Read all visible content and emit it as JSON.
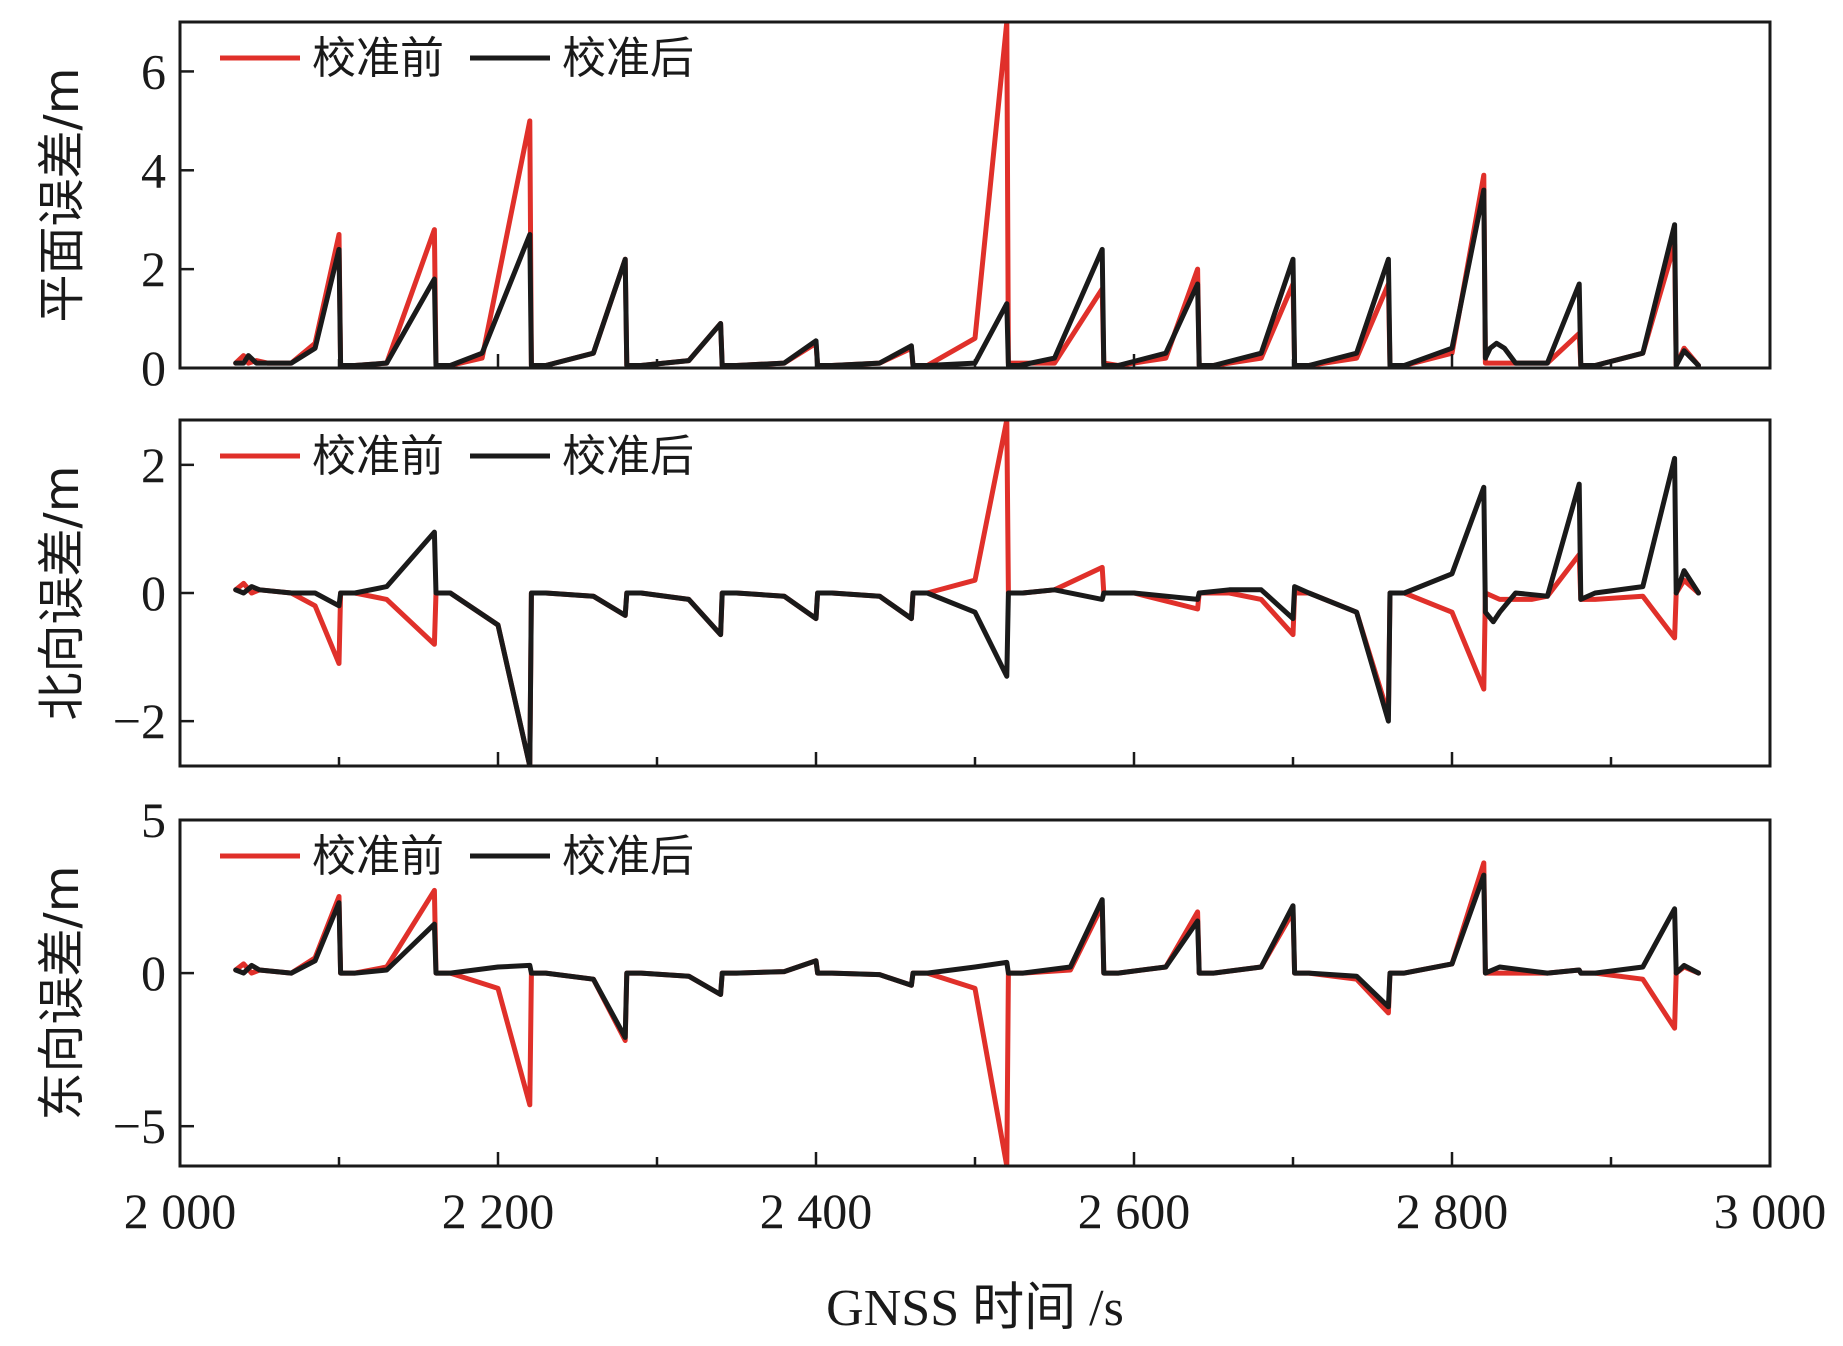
{
  "chart_data": [
    {
      "type": "line",
      "ylabel": "平面误差/m",
      "xlabel": "",
      "xlim": [
        2000,
        3000
      ],
      "ylim": [
        0,
        7
      ],
      "yticks": [
        0,
        2,
        4,
        6
      ],
      "ytick_labels": [
        "0",
        "2",
        "4",
        "6"
      ],
      "legend": "top-left",
      "grid": false,
      "series": [
        {
          "name": "校准前",
          "color": "#e0302a",
          "x": [
            2035,
            2040,
            2043,
            2048,
            2055,
            2070,
            2085,
            2100,
            2101,
            2110,
            2130,
            2160,
            2161,
            2170,
            2190,
            2220,
            2221,
            2230,
            2260,
            2280,
            2281,
            2290,
            2320,
            2340,
            2341,
            2350,
            2380,
            2400,
            2401,
            2410,
            2440,
            2460,
            2461,
            2470,
            2500,
            2520,
            2521,
            2528,
            2550,
            2580,
            2581,
            2590,
            2620,
            2640,
            2641,
            2650,
            2680,
            2700,
            2701,
            2710,
            2740,
            2760,
            2761,
            2770,
            2800,
            2820,
            2821,
            2830,
            2860,
            2880,
            2881,
            2890,
            2920,
            2940,
            2941,
            2946,
            2955
          ],
          "y": [
            0.1,
            0.25,
            0.1,
            0.15,
            0.1,
            0.1,
            0.5,
            2.7,
            0.05,
            0.05,
            0.1,
            2.8,
            0.05,
            0.05,
            0.2,
            5.0,
            0.05,
            0.05,
            0.3,
            2.2,
            0.05,
            0.05,
            0.15,
            0.9,
            0.05,
            0.05,
            0.1,
            0.5,
            0.05,
            0.05,
            0.1,
            0.4,
            0.05,
            0.05,
            0.6,
            7.0,
            0.1,
            0.1,
            0.1,
            1.6,
            0.1,
            0.05,
            0.2,
            2.0,
            0.05,
            0.05,
            0.2,
            1.7,
            0.05,
            0.05,
            0.2,
            1.7,
            0.05,
            0.05,
            0.3,
            3.9,
            0.1,
            0.1,
            0.1,
            0.7,
            0.05,
            0.05,
            0.3,
            2.5,
            0.05,
            0.4,
            0.05
          ]
        },
        {
          "name": "校准后",
          "color": "#1a1a1a",
          "x": [
            2035,
            2040,
            2043,
            2048,
            2055,
            2070,
            2085,
            2100,
            2101,
            2110,
            2130,
            2160,
            2161,
            2170,
            2190,
            2220,
            2221,
            2230,
            2260,
            2280,
            2281,
            2290,
            2320,
            2340,
            2341,
            2350,
            2380,
            2400,
            2401,
            2410,
            2440,
            2460,
            2461,
            2470,
            2500,
            2520,
            2521,
            2528,
            2550,
            2580,
            2581,
            2590,
            2620,
            2640,
            2641,
            2650,
            2680,
            2700,
            2701,
            2710,
            2740,
            2760,
            2761,
            2770,
            2800,
            2820,
            2821,
            2824,
            2828,
            2833,
            2840,
            2860,
            2880,
            2881,
            2890,
            2920,
            2940,
            2941,
            2946,
            2955
          ],
          "y": [
            0.1,
            0.1,
            0.25,
            0.1,
            0.1,
            0.1,
            0.4,
            2.4,
            0.05,
            0.05,
            0.1,
            1.8,
            0.05,
            0.05,
            0.3,
            2.7,
            0.05,
            0.05,
            0.3,
            2.2,
            0.05,
            0.05,
            0.15,
            0.9,
            0.05,
            0.05,
            0.1,
            0.55,
            0.05,
            0.05,
            0.1,
            0.45,
            0.05,
            0.05,
            0.1,
            1.3,
            0.05,
            0.05,
            0.2,
            2.4,
            0.05,
            0.05,
            0.3,
            1.7,
            0.05,
            0.05,
            0.3,
            2.2,
            0.05,
            0.05,
            0.3,
            2.2,
            0.05,
            0.05,
            0.4,
            3.6,
            0.2,
            0.4,
            0.5,
            0.4,
            0.1,
            0.1,
            1.7,
            0.05,
            0.05,
            0.3,
            2.9,
            0.05,
            0.35,
            0.05
          ]
        }
      ]
    },
    {
      "type": "line",
      "ylabel": "北向误差/m",
      "xlabel": "",
      "xlim": [
        2000,
        3000
      ],
      "ylim": [
        -2.7,
        2.7
      ],
      "yticks": [
        -2,
        0,
        2
      ],
      "ytick_labels": [
        "−2",
        "0",
        "2"
      ],
      "legend": "top-left",
      "grid": false,
      "series": [
        {
          "name": "校准前",
          "color": "#e0302a",
          "x": [
            2035,
            2040,
            2045,
            2050,
            2070,
            2085,
            2100,
            2101,
            2110,
            2130,
            2160,
            2161,
            2170,
            2200,
            2220,
            2221,
            2230,
            2260,
            2280,
            2281,
            2290,
            2320,
            2340,
            2341,
            2350,
            2380,
            2400,
            2401,
            2410,
            2440,
            2460,
            2461,
            2470,
            2500,
            2520,
            2521,
            2530,
            2550,
            2580,
            2581,
            2600,
            2640,
            2641,
            2660,
            2680,
            2700,
            2701,
            2710,
            2740,
            2760,
            2761,
            2770,
            2800,
            2820,
            2821,
            2830,
            2850,
            2860,
            2880,
            2881,
            2890,
            2920,
            2940,
            2941,
            2946,
            2955
          ],
          "y": [
            0.05,
            0.15,
            0.0,
            0.05,
            0.0,
            -0.2,
            -1.1,
            0.0,
            0.0,
            -0.1,
            -0.8,
            0.0,
            0.0,
            -0.5,
            -2.7,
            0.0,
            0.0,
            -0.05,
            -0.35,
            0.0,
            0.0,
            -0.1,
            -0.65,
            0.0,
            0.0,
            -0.05,
            -0.4,
            0.0,
            0.0,
            -0.05,
            -0.4,
            0.0,
            0.0,
            0.2,
            2.7,
            0.0,
            0.0,
            0.05,
            0.4,
            0.0,
            0.0,
            -0.25,
            0.0,
            0.0,
            -0.1,
            -0.65,
            0.0,
            0.0,
            -0.3,
            -1.9,
            0.0,
            0.0,
            -0.3,
            -1.5,
            0.0,
            -0.1,
            -0.1,
            -0.05,
            0.6,
            -0.1,
            -0.1,
            -0.05,
            -0.7,
            0.0,
            0.2,
            0.0
          ]
        },
        {
          "name": "校准后",
          "color": "#1a1a1a",
          "x": [
            2035,
            2040,
            2045,
            2050,
            2070,
            2085,
            2100,
            2101,
            2110,
            2130,
            2160,
            2161,
            2170,
            2200,
            2220,
            2221,
            2230,
            2260,
            2280,
            2281,
            2290,
            2320,
            2340,
            2341,
            2350,
            2380,
            2400,
            2401,
            2410,
            2440,
            2460,
            2461,
            2470,
            2500,
            2520,
            2521,
            2530,
            2550,
            2580,
            2581,
            2600,
            2640,
            2641,
            2660,
            2680,
            2700,
            2701,
            2710,
            2740,
            2760,
            2761,
            2770,
            2800,
            2820,
            2821,
            2826,
            2830,
            2840,
            2860,
            2880,
            2881,
            2890,
            2920,
            2940,
            2941,
            2946,
            2955
          ],
          "y": [
            0.05,
            0.0,
            0.1,
            0.05,
            0.0,
            0.0,
            -0.2,
            0.0,
            0.0,
            0.1,
            0.95,
            0.0,
            0.0,
            -0.5,
            -2.7,
            0.0,
            0.0,
            -0.05,
            -0.35,
            0.0,
            0.0,
            -0.1,
            -0.65,
            0.0,
            0.0,
            -0.05,
            -0.4,
            0.0,
            0.0,
            -0.05,
            -0.4,
            0.0,
            0.0,
            -0.3,
            -1.3,
            0.0,
            0.0,
            0.05,
            -0.1,
            0.0,
            0.0,
            -0.1,
            0.0,
            0.05,
            0.05,
            -0.4,
            0.1,
            0.0,
            -0.3,
            -2.0,
            0.0,
            0.0,
            0.3,
            1.65,
            -0.3,
            -0.45,
            -0.3,
            0.0,
            -0.05,
            1.7,
            -0.1,
            0.0,
            0.1,
            2.1,
            0.0,
            0.35,
            0.0
          ]
        }
      ]
    },
    {
      "type": "line",
      "ylabel": "东向误差/m",
      "xlabel": "GNSS 时间 /s",
      "xlim": [
        2000,
        3000
      ],
      "ylim": [
        -6.3,
        5
      ],
      "yticks": [
        -5,
        0,
        5
      ],
      "ytick_labels": [
        "−5",
        "0",
        "5"
      ],
      "xticks": [
        2000,
        2200,
        2400,
        2600,
        2800,
        3000
      ],
      "xtick_labels": [
        "2 000",
        "2 200",
        "2 400",
        "2 600",
        "2 800",
        "3 000"
      ],
      "legend": "top-left",
      "grid": false,
      "series": [
        {
          "name": "校准前",
          "color": "#e0302a",
          "x": [
            2035,
            2040,
            2045,
            2050,
            2070,
            2085,
            2100,
            2101,
            2110,
            2130,
            2160,
            2161,
            2170,
            2200,
            2220,
            2221,
            2230,
            2260,
            2280,
            2281,
            2290,
            2320,
            2340,
            2341,
            2350,
            2380,
            2400,
            2401,
            2410,
            2440,
            2460,
            2461,
            2470,
            2500,
            2520,
            2521,
            2530,
            2560,
            2580,
            2581,
            2590,
            2620,
            2640,
            2641,
            2650,
            2680,
            2700,
            2701,
            2710,
            2740,
            2760,
            2761,
            2770,
            2800,
            2820,
            2821,
            2830,
            2860,
            2880,
            2881,
            2890,
            2920,
            2940,
            2941,
            2946,
            2955
          ],
          "y": [
            0.1,
            0.3,
            0.0,
            0.1,
            0.0,
            0.5,
            2.5,
            0.0,
            0.0,
            0.2,
            2.7,
            0.0,
            0.0,
            -0.5,
            -4.3,
            0.0,
            0.0,
            -0.2,
            -2.2,
            0.0,
            0.0,
            -0.1,
            -0.7,
            0.0,
            0.0,
            0.05,
            0.4,
            0.0,
            0.0,
            -0.05,
            -0.4,
            0.0,
            0.0,
            -0.5,
            -6.3,
            0.0,
            0.0,
            0.1,
            2.2,
            0.0,
            0.0,
            0.2,
            2.0,
            0.0,
            0.0,
            0.2,
            2.0,
            0.0,
            0.0,
            -0.2,
            -1.3,
            0.0,
            0.0,
            0.3,
            3.6,
            0.0,
            0.0,
            0.0,
            0.1,
            0.0,
            0.0,
            -0.2,
            -1.8,
            0.0,
            0.2,
            0.0
          ]
        },
        {
          "name": "校准后",
          "color": "#1a1a1a",
          "x": [
            2035,
            2040,
            2045,
            2050,
            2070,
            2085,
            2100,
            2101,
            2110,
            2130,
            2160,
            2161,
            2170,
            2200,
            2220,
            2221,
            2230,
            2260,
            2280,
            2281,
            2290,
            2320,
            2340,
            2341,
            2350,
            2380,
            2400,
            2401,
            2410,
            2440,
            2460,
            2461,
            2470,
            2500,
            2520,
            2521,
            2530,
            2560,
            2580,
            2581,
            2590,
            2620,
            2640,
            2641,
            2650,
            2680,
            2700,
            2701,
            2710,
            2740,
            2760,
            2761,
            2770,
            2800,
            2820,
            2821,
            2830,
            2860,
            2880,
            2881,
            2890,
            2920,
            2940,
            2941,
            2946,
            2955
          ],
          "y": [
            0.1,
            0.0,
            0.25,
            0.1,
            0.0,
            0.4,
            2.3,
            0.0,
            0.0,
            0.1,
            1.6,
            0.0,
            0.0,
            0.2,
            0.25,
            0.0,
            0.0,
            -0.2,
            -2.1,
            0.0,
            0.0,
            -0.1,
            -0.7,
            0.0,
            0.0,
            0.05,
            0.4,
            0.0,
            0.0,
            -0.05,
            -0.4,
            0.0,
            0.0,
            0.2,
            0.35,
            0.0,
            0.0,
            0.2,
            2.4,
            0.0,
            0.0,
            0.2,
            1.7,
            0.0,
            0.0,
            0.2,
            2.2,
            0.0,
            0.0,
            -0.1,
            -1.1,
            0.0,
            0.0,
            0.3,
            3.2,
            0.0,
            0.2,
            0.0,
            0.1,
            0.0,
            0.0,
            0.2,
            2.1,
            0.0,
            0.25,
            0.0
          ]
        }
      ]
    }
  ]
}
